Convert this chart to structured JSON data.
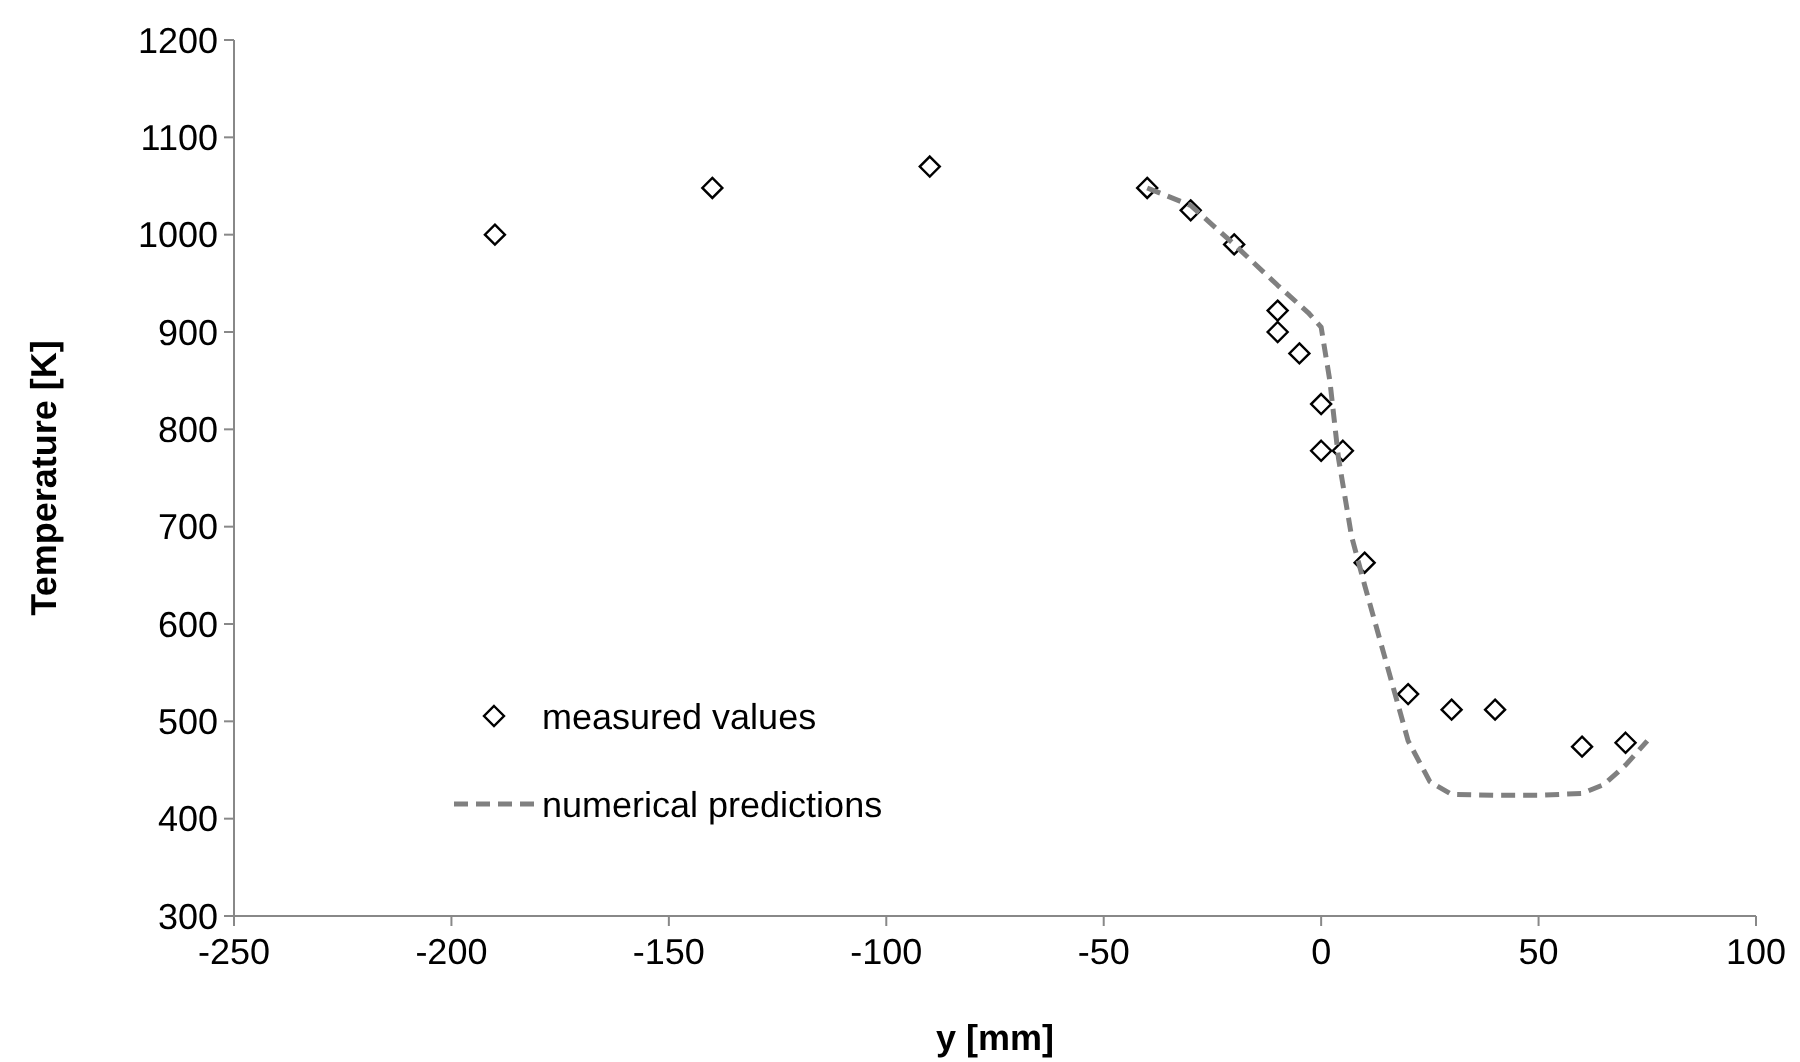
{
  "chart_data": {
    "type": "scatter",
    "xlabel": "y [mm]",
    "ylabel": "Temperature [K]",
    "xlim": [
      -250,
      100
    ],
    "xticks": [
      -250,
      -200,
      -150,
      -100,
      -50,
      0,
      50,
      100
    ],
    "ylim": [
      300,
      1200
    ],
    "yticks": [
      300,
      400,
      500,
      600,
      700,
      800,
      900,
      1000,
      1100,
      1200
    ],
    "grid": false,
    "legend": "bottom left",
    "series": [
      {
        "name": "measured values",
        "marker": "diamond",
        "color": "#000000",
        "x": [
          -190,
          -140,
          -90,
          -40,
          -30,
          -20,
          -10,
          -10,
          -5,
          0,
          0,
          5,
          10,
          20,
          30,
          40,
          60,
          70
        ],
        "values": [
          1000,
          1048,
          1070,
          1048,
          1025,
          990,
          922,
          900,
          878,
          826,
          778,
          778,
          663,
          528,
          512,
          512,
          474,
          478
        ]
      },
      {
        "name": "numerical predictions",
        "type": "line",
        "line_style": "dashed",
        "marker": "none",
        "color": "#808080",
        "x": [
          -40,
          -30,
          -20,
          -10,
          -3,
          0,
          2,
          4,
          7,
          10,
          15,
          20,
          25,
          30,
          40,
          50,
          60,
          65,
          70,
          75
        ],
        "values": [
          1048,
          1030,
          990,
          948,
          920,
          905,
          850,
          770,
          690,
          640,
          560,
          480,
          438,
          425,
          424,
          424,
          426,
          435,
          455,
          480
        ]
      }
    ]
  }
}
